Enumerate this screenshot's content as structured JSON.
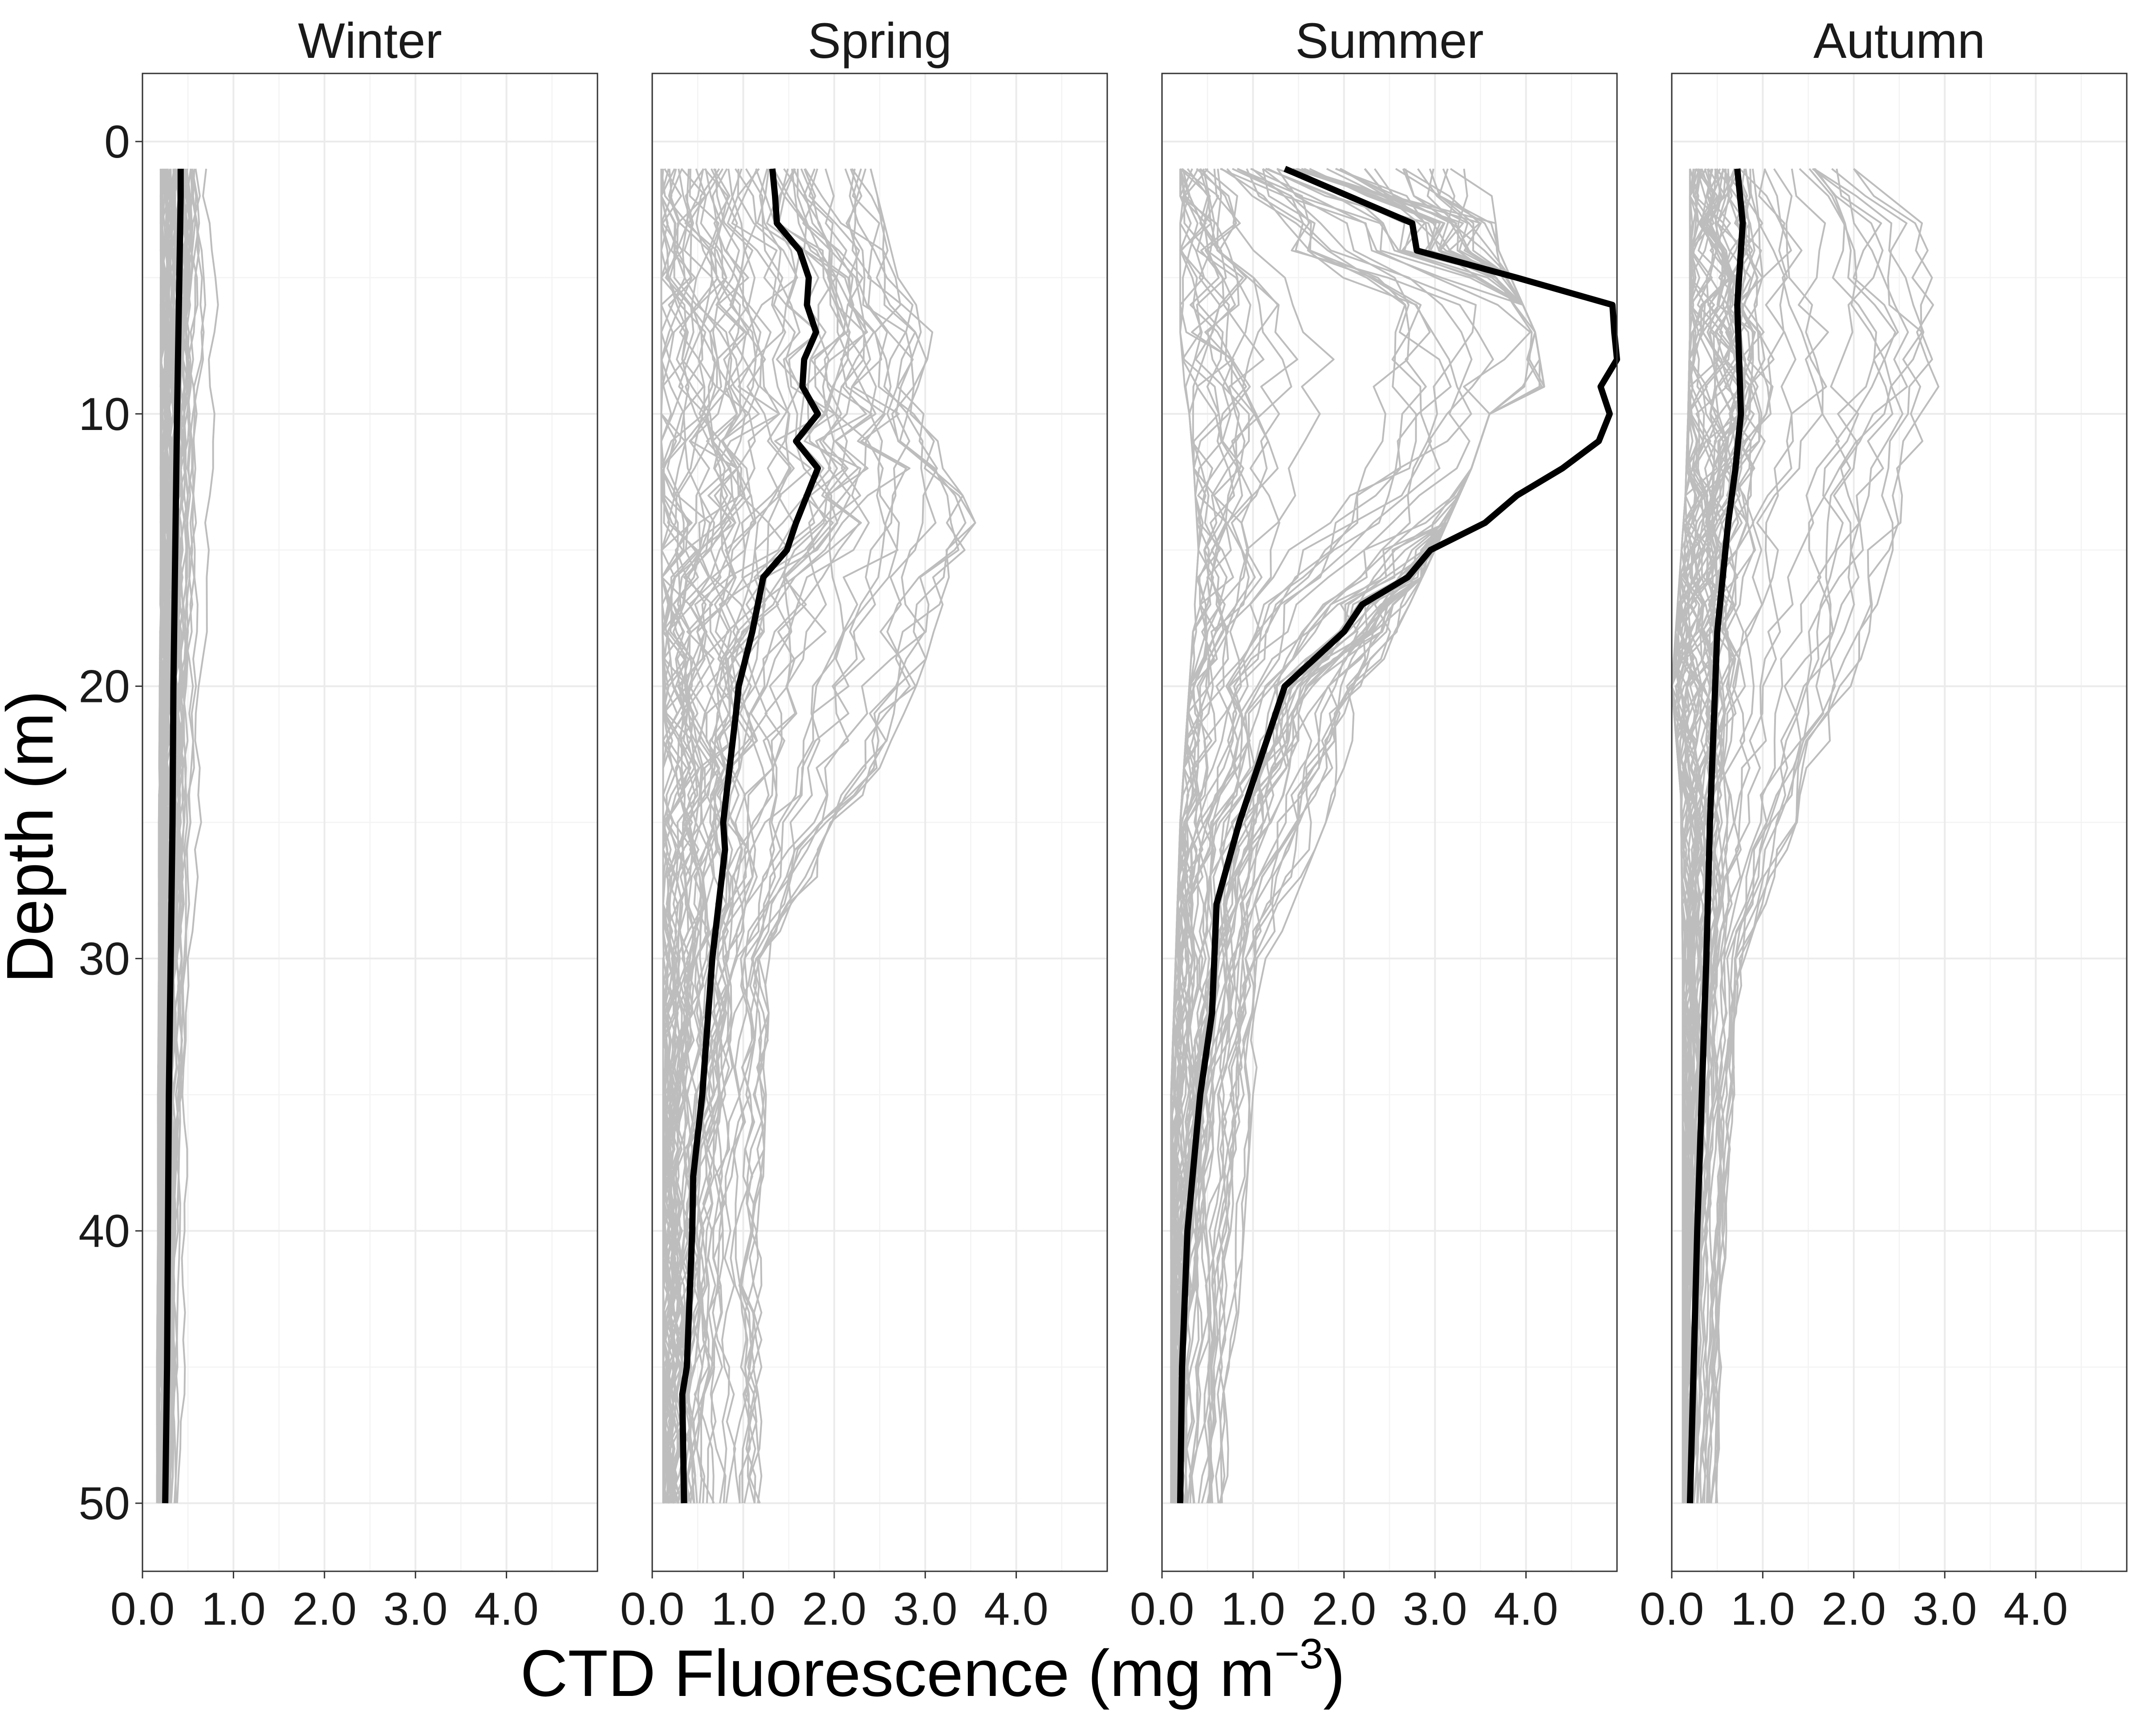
{
  "chart_data": {
    "type": "line",
    "layout": "faceted-4-panels",
    "xlabel_main": "CTD Fluorescence (mg m",
    "xlabel_sup": "−3",
    "xlabel_close": ")",
    "ylabel": "Depth (m)",
    "xlim": [
      0,
      5
    ],
    "ylim": [
      52.5,
      -2.5
    ],
    "y_reversed": true,
    "x_ticks": [
      0,
      1,
      2,
      3,
      4
    ],
    "x_tick_labels": [
      "0.0",
      "1.0",
      "2.0",
      "3.0",
      "4.0"
    ],
    "y_ticks": [
      0,
      10,
      20,
      30,
      40,
      50
    ],
    "y_tick_labels": [
      "0",
      "10",
      "20",
      "30",
      "40",
      "50"
    ],
    "grid": true,
    "colors": {
      "profiles": "#bdbdbd",
      "mean": "#000000"
    },
    "panels": [
      {
        "name": "Winter",
        "mean": {
          "depth": [
            1,
            2,
            4,
            6,
            10,
            15,
            20,
            25,
            30,
            35,
            40,
            45,
            50
          ],
          "value": [
            0.42,
            0.42,
            0.41,
            0.4,
            0.38,
            0.36,
            0.34,
            0.33,
            0.31,
            0.29,
            0.28,
            0.27,
            0.25
          ]
        },
        "profile_envelope": {
          "depth": [
            1,
            5,
            10,
            15,
            20,
            25,
            30,
            35,
            40,
            45,
            50
          ],
          "min": [
            0.2,
            0.2,
            0.2,
            0.2,
            0.19,
            0.18,
            0.18,
            0.17,
            0.17,
            0.16,
            0.16
          ],
          "max": [
            0.8,
            0.85,
            0.85,
            0.8,
            0.75,
            0.7,
            0.6,
            0.55,
            0.5,
            0.5,
            0.45
          ]
        }
      },
      {
        "name": "Spring",
        "mean": {
          "depth": [
            1,
            2,
            3,
            4,
            5,
            6,
            7,
            8,
            9,
            10,
            11,
            12,
            13,
            14,
            15,
            16,
            18,
            20,
            21,
            25,
            26,
            30,
            35,
            38,
            40,
            45,
            46,
            50
          ],
          "value": [
            1.32,
            1.35,
            1.37,
            1.62,
            1.72,
            1.7,
            1.8,
            1.67,
            1.65,
            1.82,
            1.58,
            1.82,
            1.7,
            1.58,
            1.48,
            1.22,
            1.1,
            0.95,
            0.92,
            0.78,
            0.8,
            0.66,
            0.55,
            0.45,
            0.44,
            0.38,
            0.33,
            0.35
          ]
        },
        "profile_envelope": {
          "depth": [
            1,
            5,
            7,
            10,
            14,
            20,
            23,
            30,
            40,
            50
          ],
          "min": [
            0.1,
            0.1,
            0.1,
            0.1,
            0.1,
            0.12,
            0.12,
            0.12,
            0.12,
            0.12
          ],
          "max": [
            2.4,
            2.7,
            3.1,
            3.0,
            3.55,
            2.9,
            2.5,
            1.3,
            1.2,
            1.2
          ]
        }
      },
      {
        "name": "Summer",
        "mean": {
          "depth": [
            1,
            3,
            4,
            5,
            6,
            7,
            8,
            9,
            10,
            11,
            12,
            13,
            14,
            15,
            16,
            17,
            18,
            20,
            22,
            25,
            28,
            32,
            35,
            40,
            45,
            50
          ],
          "value": [
            1.35,
            2.75,
            2.8,
            3.9,
            4.95,
            4.97,
            5.0,
            4.82,
            4.92,
            4.8,
            4.4,
            3.9,
            3.55,
            2.95,
            2.7,
            2.2,
            2.0,
            1.35,
            1.15,
            0.85,
            0.6,
            0.55,
            0.42,
            0.28,
            0.22,
            0.2
          ]
        },
        "profile_envelope": {
          "depth": [
            1,
            4,
            7,
            9,
            10,
            12,
            15,
            20,
            25,
            30,
            35,
            40,
            50
          ],
          "min": [
            0.2,
            0.2,
            0.2,
            0.25,
            0.3,
            0.35,
            0.4,
            0.3,
            0.2,
            0.15,
            0.1,
            0.1,
            0.1
          ],
          "max": [
            3.6,
            3.7,
            4.1,
            4.2,
            3.6,
            3.4,
            3.0,
            2.3,
            1.8,
            1.2,
            1.0,
            0.9,
            0.7
          ]
        }
      },
      {
        "name": "Autumn",
        "mean": {
          "depth": [
            1,
            3,
            6,
            10,
            12,
            14,
            18,
            25,
            30,
            35,
            40,
            45,
            50
          ],
          "value": [
            0.72,
            0.78,
            0.72,
            0.76,
            0.7,
            0.62,
            0.5,
            0.42,
            0.38,
            0.33,
            0.28,
            0.24,
            0.2
          ]
        },
        "profile_envelope": {
          "depth": [
            1,
            3,
            7,
            10,
            13,
            20,
            24,
            30,
            40,
            50
          ],
          "min": [
            0.2,
            0.2,
            0.2,
            0.18,
            0.15,
            0.0,
            0.1,
            0.12,
            0.12,
            0.12
          ],
          "max": [
            2.0,
            2.75,
            3.0,
            2.9,
            2.6,
            2.0,
            1.5,
            0.8,
            0.6,
            0.5
          ]
        }
      }
    ]
  }
}
